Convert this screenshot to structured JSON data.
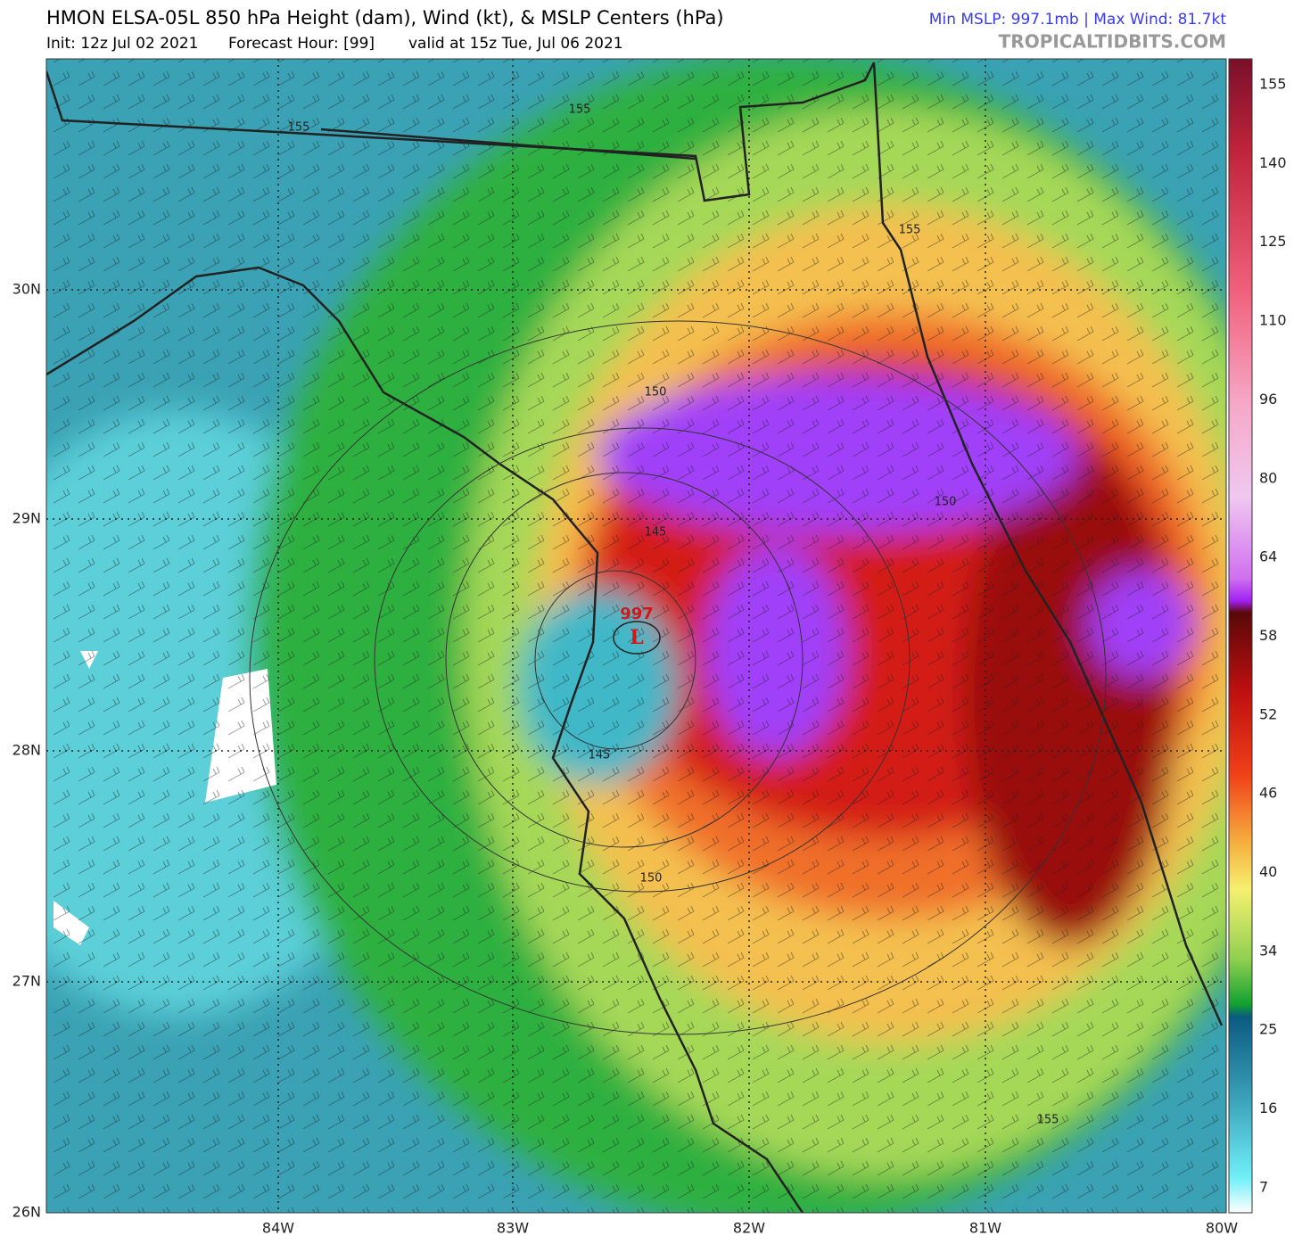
{
  "header": {
    "title": "HMON ELSA-05L 850 hPa Height (dam), Wind (kt), & MSLP Centers (hPa)",
    "init": "Init: 12z Jul 02 2021",
    "forecast_hour": "Forecast Hour: [99]",
    "valid": "valid at 15z Tue, Jul 06 2021",
    "stats": "Min MSLP: 997.1mb | Max Wind: 81.7kt",
    "source": "TROPICALTIDBITS.COM"
  },
  "map": {
    "lat_labels": [
      "30N",
      "29N",
      "28N",
      "27N",
      "26N"
    ],
    "lon_labels": [
      "84W",
      "83W",
      "82W",
      "81W",
      "80W"
    ],
    "contour_labels": [
      155,
      155,
      155,
      150,
      150,
      145,
      145,
      150,
      155
    ],
    "low": {
      "pressure": 997,
      "symbol": "L"
    }
  },
  "colorbar": {
    "labels": [
      155,
      140,
      125,
      110,
      96,
      80,
      64,
      58,
      52,
      46,
      40,
      34,
      25,
      16,
      7
    ]
  }
}
